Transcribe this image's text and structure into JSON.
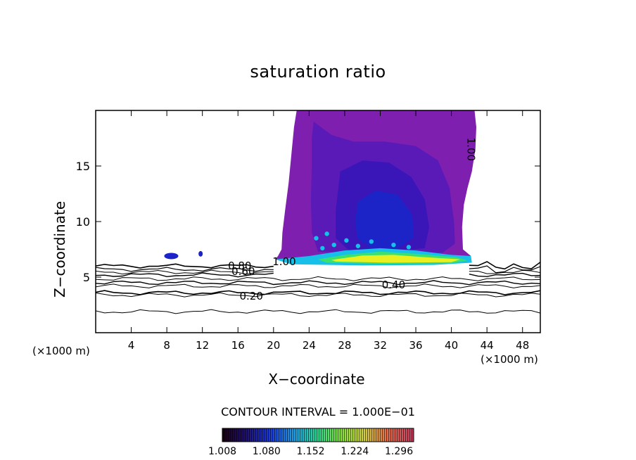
{
  "chart_data": {
    "type": "heatmap",
    "title": "saturation ratio",
    "xlabel": "X−coordinate",
    "ylabel": "Z−coordinate",
    "x_unit_label": "(×1000 m)",
    "x_ticks": [
      4,
      8,
      12,
      16,
      20,
      24,
      28,
      32,
      36,
      40,
      44,
      48
    ],
    "y_ticks": [
      5,
      10,
      15
    ],
    "xlim": [
      0,
      50
    ],
    "ylim": [
      0,
      20
    ],
    "contour_interval_text": "CONTOUR INTERVAL = 1.000E−01",
    "colorbar_ticks": [
      "1.008",
      "1.080",
      "1.152",
      "1.224",
      "1.296"
    ],
    "colorbar_range": [
      1.008,
      1.32
    ],
    "contour_labels": [
      {
        "text": "0.80",
        "x": 16.2,
        "z": 6.0
      },
      {
        "text": "0.60",
        "x": 16.6,
        "z": 5.5
      },
      {
        "text": "1.00",
        "x": 21.2,
        "z": 6.4
      },
      {
        "text": "0.40",
        "x": 33.5,
        "z": 4.3
      },
      {
        "text": "0.20",
        "x": 17.5,
        "z": 3.3
      },
      {
        "text": "1.00",
        "x": 42.2,
        "z": 16.5
      }
    ],
    "colors": {
      "violet": "#7f1fb0",
      "indigo": "#5a1ab8",
      "blue_dark": "#3a16b8",
      "blue": "#1c24c8",
      "cyan": "#16c0e8",
      "green": "#3ae070",
      "yellow": "#e8f020"
    }
  }
}
